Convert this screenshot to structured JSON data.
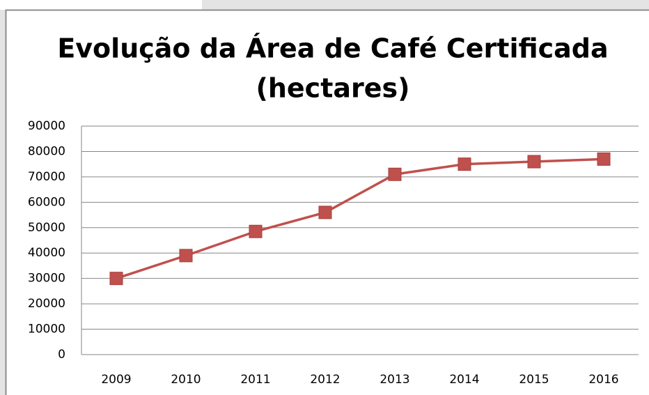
{
  "chart_data": {
    "type": "line",
    "title": [
      "Evolução da Área de Café Certificada",
      "(hectares)"
    ],
    "categories": [
      "2009",
      "2010",
      "2011",
      "2012",
      "2013",
      "2014",
      "2015",
      "2016"
    ],
    "series": [
      {
        "name": null,
        "color": "#c0504d",
        "values": [
          30000,
          39000,
          48500,
          56000,
          71000,
          75000,
          76000,
          77000
        ]
      }
    ],
    "ylim": [
      0,
      90000
    ],
    "yticks": [
      0,
      10000,
      20000,
      30000,
      40000,
      50000,
      60000,
      70000,
      80000,
      90000
    ],
    "grid": true
  }
}
